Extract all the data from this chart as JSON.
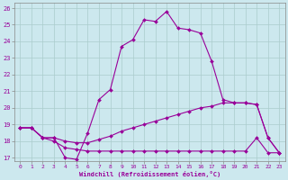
{
  "xlabel": "Windchill (Refroidissement éolien,°C)",
  "background_color": "#cce8ee",
  "grid_color": "#aacccc",
  "line_color": "#990099",
  "xlim": [
    -0.5,
    23.5
  ],
  "ylim": [
    16.8,
    26.3
  ],
  "xticks": [
    0,
    1,
    2,
    3,
    4,
    5,
    6,
    7,
    8,
    9,
    10,
    11,
    12,
    13,
    14,
    15,
    16,
    17,
    18,
    19,
    20,
    21,
    22,
    23
  ],
  "yticks": [
    17,
    18,
    19,
    20,
    21,
    22,
    23,
    24,
    25,
    26
  ],
  "line1_x": [
    0,
    1,
    2,
    3,
    4,
    5,
    6,
    7,
    8,
    9,
    10,
    11,
    12,
    13,
    14,
    15,
    16,
    17,
    18,
    19,
    20,
    21,
    22,
    23
  ],
  "line1_y": [
    18.8,
    18.8,
    18.2,
    18.2,
    17.0,
    16.9,
    18.5,
    20.5,
    21.1,
    23.7,
    24.1,
    25.3,
    25.2,
    25.8,
    24.8,
    24.7,
    24.5,
    22.8,
    20.5,
    20.3,
    20.3,
    20.2,
    18.2,
    17.3
  ],
  "line2_x": [
    0,
    1,
    2,
    3,
    4,
    5,
    6,
    7,
    8,
    9,
    10,
    11,
    12,
    13,
    14,
    15,
    16,
    17,
    18,
    19,
    20,
    21,
    22,
    23
  ],
  "line2_y": [
    18.8,
    18.8,
    18.2,
    18.0,
    17.6,
    17.5,
    17.4,
    17.4,
    17.4,
    17.4,
    17.4,
    17.4,
    17.4,
    17.4,
    17.4,
    17.4,
    17.4,
    17.4,
    17.4,
    17.4,
    17.4,
    18.2,
    17.3,
    17.3
  ],
  "line3_x": [
    0,
    1,
    2,
    3,
    4,
    5,
    6,
    7,
    8,
    9,
    10,
    11,
    12,
    13,
    14,
    15,
    16,
    17,
    18,
    19,
    20,
    21,
    22,
    23
  ],
  "line3_y": [
    18.8,
    18.8,
    18.2,
    18.2,
    18.0,
    17.9,
    17.9,
    18.1,
    18.3,
    18.6,
    18.8,
    19.0,
    19.2,
    19.4,
    19.6,
    19.8,
    20.0,
    20.1,
    20.3,
    20.3,
    20.3,
    20.2,
    18.2,
    17.3
  ]
}
